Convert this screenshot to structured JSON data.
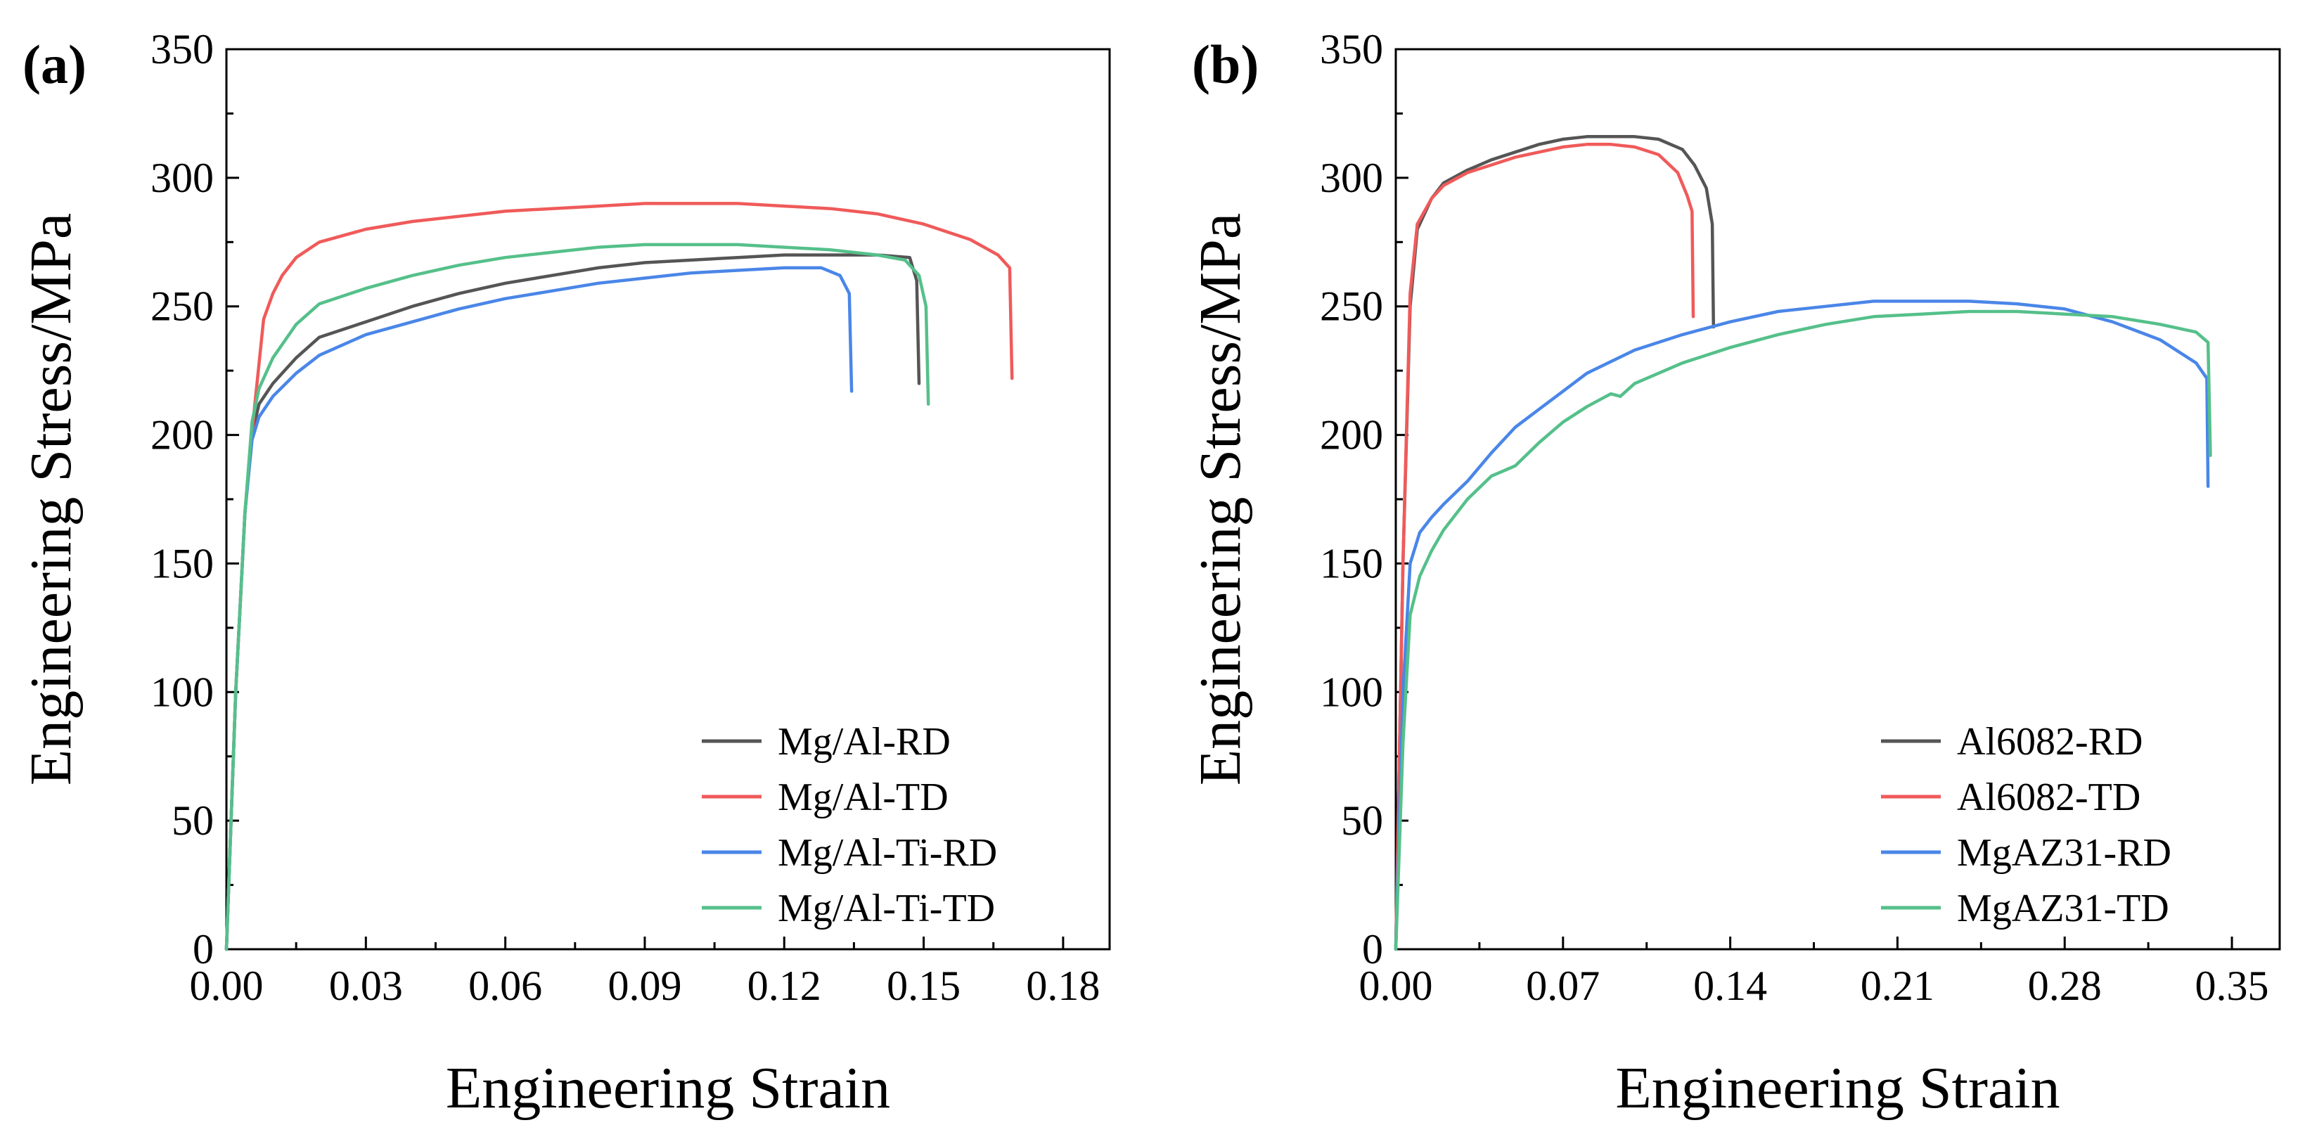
{
  "chart_data": [
    {
      "type": "line",
      "panel_label": "(a)",
      "xlabel": "Engineering Strain",
      "ylabel": "Engineering Stress/MPa",
      "xlim": [
        0,
        0.19
      ],
      "ylim": [
        0,
        350
      ],
      "xticks": [
        0.0,
        0.03,
        0.06,
        0.09,
        0.12,
        0.15,
        0.18
      ],
      "xtick_labels": [
        "0.00",
        "0.03",
        "0.06",
        "0.09",
        "0.12",
        "0.15",
        "0.18"
      ],
      "yticks": [
        0,
        50,
        100,
        150,
        200,
        250,
        300,
        350
      ],
      "ytick_labels": [
        "0",
        "50",
        "100",
        "150",
        "200",
        "250",
        "300",
        "350"
      ],
      "legend_position": "bottom-right",
      "series": [
        {
          "name": "Mg/Al-RD",
          "color": "#555555",
          "points": [
            [
              0,
              0
            ],
            [
              0.002,
              100
            ],
            [
              0.004,
              170
            ],
            [
              0.0055,
              200
            ],
            [
              0.007,
              212
            ],
            [
              0.01,
              220
            ],
            [
              0.015,
              230
            ],
            [
              0.02,
              238
            ],
            [
              0.03,
              244
            ],
            [
              0.04,
              250
            ],
            [
              0.05,
              255
            ],
            [
              0.06,
              259
            ],
            [
              0.07,
              262
            ],
            [
              0.08,
              265
            ],
            [
              0.09,
              267
            ],
            [
              0.1,
              268
            ],
            [
              0.11,
              269
            ],
            [
              0.12,
              270
            ],
            [
              0.13,
              270
            ],
            [
              0.14,
              270
            ],
            [
              0.147,
              269
            ],
            [
              0.1485,
              260
            ],
            [
              0.149,
              220
            ]
          ]
        },
        {
          "name": "Mg/Al-TD",
          "color": "#f05a5a",
          "points": [
            [
              0,
              0
            ],
            [
              0.002,
              100
            ],
            [
              0.004,
              170
            ],
            [
              0.006,
              210
            ],
            [
              0.008,
              245
            ],
            [
              0.01,
              255
            ],
            [
              0.012,
              262
            ],
            [
              0.015,
              269
            ],
            [
              0.02,
              275
            ],
            [
              0.03,
              280
            ],
            [
              0.04,
              283
            ],
            [
              0.05,
              285
            ],
            [
              0.06,
              287
            ],
            [
              0.07,
              288
            ],
            [
              0.08,
              289
            ],
            [
              0.09,
              290
            ],
            [
              0.1,
              290
            ],
            [
              0.11,
              290
            ],
            [
              0.12,
              289
            ],
            [
              0.13,
              288
            ],
            [
              0.14,
              286
            ],
            [
              0.15,
              282
            ],
            [
              0.16,
              276
            ],
            [
              0.166,
              270
            ],
            [
              0.1685,
              265
            ],
            [
              0.169,
              222
            ]
          ]
        },
        {
          "name": "Mg/Al-Ti-RD",
          "color": "#4a86e8",
          "points": [
            [
              0,
              0
            ],
            [
              0.002,
              100
            ],
            [
              0.004,
              170
            ],
            [
              0.0055,
              198
            ],
            [
              0.007,
              207
            ],
            [
              0.01,
              215
            ],
            [
              0.015,
              224
            ],
            [
              0.02,
              231
            ],
            [
              0.03,
              239
            ],
            [
              0.04,
              244
            ],
            [
              0.05,
              249
            ],
            [
              0.06,
              253
            ],
            [
              0.07,
              256
            ],
            [
              0.08,
              259
            ],
            [
              0.09,
              261
            ],
            [
              0.1,
              263
            ],
            [
              0.11,
              264
            ],
            [
              0.12,
              265
            ],
            [
              0.128,
              265
            ],
            [
              0.132,
              262
            ],
            [
              0.134,
              255
            ],
            [
              0.1345,
              217
            ]
          ]
        },
        {
          "name": "Mg/Al-Ti-TD",
          "color": "#55c08a",
          "points": [
            [
              0,
              0
            ],
            [
              0.002,
              100
            ],
            [
              0.004,
              170
            ],
            [
              0.0055,
              205
            ],
            [
              0.007,
              218
            ],
            [
              0.01,
              230
            ],
            [
              0.015,
              243
            ],
            [
              0.02,
              251
            ],
            [
              0.03,
              257
            ],
            [
              0.04,
              262
            ],
            [
              0.05,
              266
            ],
            [
              0.06,
              269
            ],
            [
              0.07,
              271
            ],
            [
              0.08,
              273
            ],
            [
              0.09,
              274
            ],
            [
              0.1,
              274
            ],
            [
              0.11,
              274
            ],
            [
              0.12,
              273
            ],
            [
              0.13,
              272
            ],
            [
              0.14,
              270
            ],
            [
              0.146,
              268
            ],
            [
              0.149,
              262
            ],
            [
              0.1505,
              250
            ],
            [
              0.151,
              212
            ]
          ]
        }
      ]
    },
    {
      "type": "line",
      "panel_label": "(b)",
      "xlabel": "Engineering Strain",
      "ylabel": "Engineering Stress/MPa",
      "xlim": [
        0,
        0.37
      ],
      "ylim": [
        0,
        350
      ],
      "xticks": [
        0.0,
        0.07,
        0.14,
        0.21,
        0.28,
        0.35
      ],
      "xtick_labels": [
        "0.00",
        "0.07",
        "0.14",
        "0.21",
        "0.28",
        "0.35"
      ],
      "yticks": [
        0,
        50,
        100,
        150,
        200,
        250,
        300,
        350
      ],
      "ytick_labels": [
        "0",
        "50",
        "100",
        "150",
        "200",
        "250",
        "300",
        "350"
      ],
      "legend_position": "bottom-right",
      "series": [
        {
          "name": "Al6082-RD",
          "color": "#555555",
          "points": [
            [
              0,
              0
            ],
            [
              0.003,
              150
            ],
            [
              0.006,
              250
            ],
            [
              0.009,
              280
            ],
            [
              0.015,
              292
            ],
            [
              0.02,
              298
            ],
            [
              0.03,
              303
            ],
            [
              0.04,
              307
            ],
            [
              0.05,
              310
            ],
            [
              0.06,
              313
            ],
            [
              0.07,
              315
            ],
            [
              0.08,
              316
            ],
            [
              0.09,
              316
            ],
            [
              0.1,
              316
            ],
            [
              0.11,
              315
            ],
            [
              0.12,
              311
            ],
            [
              0.125,
              305
            ],
            [
              0.13,
              296
            ],
            [
              0.1325,
              282
            ],
            [
              0.133,
              242
            ]
          ]
        },
        {
          "name": "Al6082-TD",
          "color": "#f05a5a",
          "points": [
            [
              0,
              0
            ],
            [
              0.003,
              150
            ],
            [
              0.006,
              255
            ],
            [
              0.009,
              282
            ],
            [
              0.015,
              292
            ],
            [
              0.02,
              297
            ],
            [
              0.03,
              302
            ],
            [
              0.04,
              305
            ],
            [
              0.05,
              308
            ],
            [
              0.06,
              310
            ],
            [
              0.07,
              312
            ],
            [
              0.08,
              313
            ],
            [
              0.09,
              313
            ],
            [
              0.1,
              312
            ],
            [
              0.11,
              309
            ],
            [
              0.118,
              302
            ],
            [
              0.122,
              293
            ],
            [
              0.124,
              287
            ],
            [
              0.1245,
              246
            ]
          ]
        },
        {
          "name": "MgAZ31-RD",
          "color": "#4a86e8",
          "points": [
            [
              0,
              0
            ],
            [
              0.003,
              100
            ],
            [
              0.006,
              150
            ],
            [
              0.01,
              162
            ],
            [
              0.015,
              168
            ],
            [
              0.02,
              173
            ],
            [
              0.03,
              182
            ],
            [
              0.04,
              193
            ],
            [
              0.05,
              203
            ],
            [
              0.06,
              210
            ],
            [
              0.07,
              217
            ],
            [
              0.08,
              224
            ],
            [
              0.1,
              233
            ],
            [
              0.12,
              239
            ],
            [
              0.14,
              244
            ],
            [
              0.16,
              248
            ],
            [
              0.18,
              250
            ],
            [
              0.2,
              252
            ],
            [
              0.22,
              252
            ],
            [
              0.24,
              252
            ],
            [
              0.26,
              251
            ],
            [
              0.28,
              249
            ],
            [
              0.3,
              244
            ],
            [
              0.32,
              237
            ],
            [
              0.335,
              228
            ],
            [
              0.3395,
              222
            ],
            [
              0.34,
              180
            ]
          ]
        },
        {
          "name": "MgAZ31-TD",
          "color": "#55c08a",
          "points": [
            [
              0,
              0
            ],
            [
              0.003,
              80
            ],
            [
              0.006,
              130
            ],
            [
              0.01,
              145
            ],
            [
              0.015,
              155
            ],
            [
              0.02,
              163
            ],
            [
              0.03,
              175
            ],
            [
              0.04,
              184
            ],
            [
              0.05,
              188
            ],
            [
              0.06,
              197
            ],
            [
              0.07,
              205
            ],
            [
              0.08,
              211
            ],
            [
              0.09,
              216
            ],
            [
              0.094,
              215
            ],
            [
              0.1,
              220
            ],
            [
              0.12,
              228
            ],
            [
              0.14,
              234
            ],
            [
              0.16,
              239
            ],
            [
              0.18,
              243
            ],
            [
              0.2,
              246
            ],
            [
              0.22,
              247
            ],
            [
              0.24,
              248
            ],
            [
              0.26,
              248
            ],
            [
              0.28,
              247
            ],
            [
              0.3,
              246
            ],
            [
              0.32,
              243
            ],
            [
              0.335,
              240
            ],
            [
              0.34,
              236
            ],
            [
              0.341,
              192
            ]
          ]
        }
      ]
    }
  ]
}
